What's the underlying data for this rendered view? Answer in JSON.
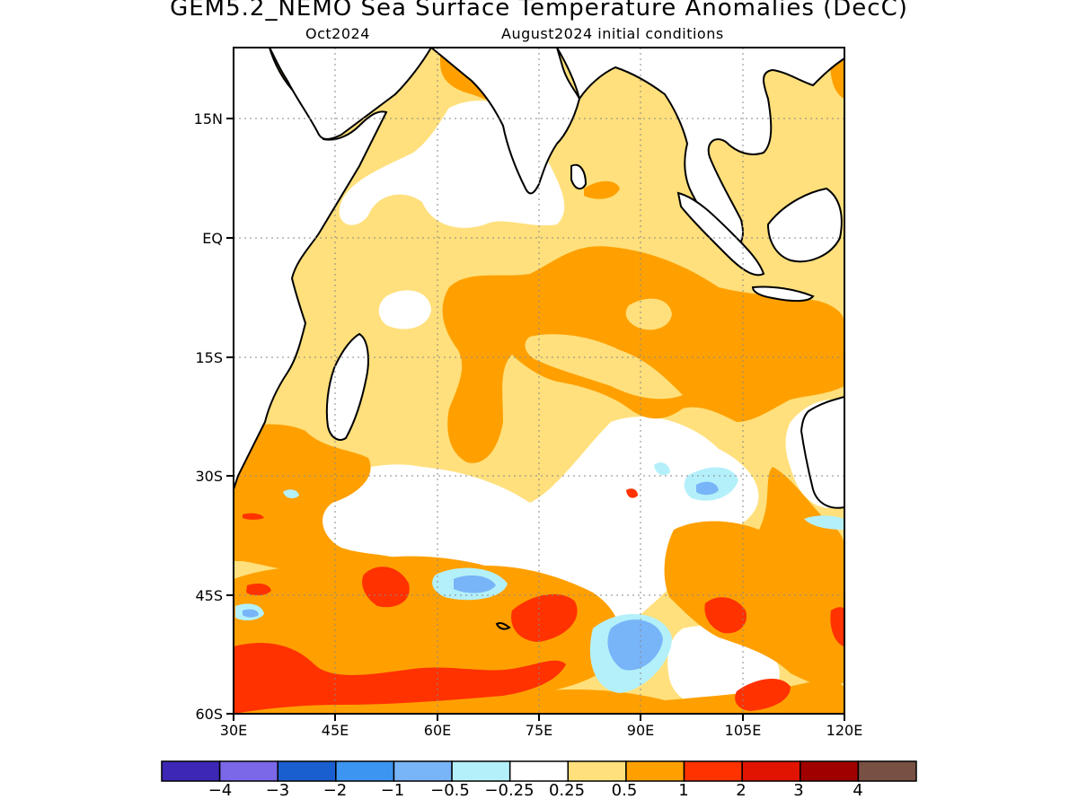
{
  "header": {
    "title": "GEM5.2_NEMO Sea Surface Temperature Anomalies (DecC)",
    "month": "Oct2024",
    "init": "August2024 initial conditions"
  },
  "map": {
    "region": "Indian Ocean",
    "lat_range": [
      -60,
      24
    ],
    "lon_range": [
      30,
      120
    ],
    "lat_ticks": [
      "15N",
      "EQ",
      "15S",
      "30S",
      "45S",
      "60S"
    ],
    "lon_ticks": [
      "30E",
      "45E",
      "60E",
      "75E",
      "90E",
      "105E",
      "120E"
    ],
    "grid": true,
    "land_color": "#ffffff",
    "coastline_color": "#000000"
  },
  "colorbar": {
    "colors": [
      "#3c28b4",
      "#7a68e8",
      "#1a5fd0",
      "#3c95f0",
      "#78b4f8",
      "#b4f0fa",
      "#ffffff",
      "#ffe07c",
      "#ffa000",
      "#ff3200",
      "#e01400",
      "#a00000",
      "#785044"
    ],
    "labels": [
      "−4",
      "−3",
      "−2",
      "−1",
      "−0.5",
      "−0.25",
      "0.25",
      "0.5",
      "1",
      "2",
      "3",
      "4"
    ]
  }
}
